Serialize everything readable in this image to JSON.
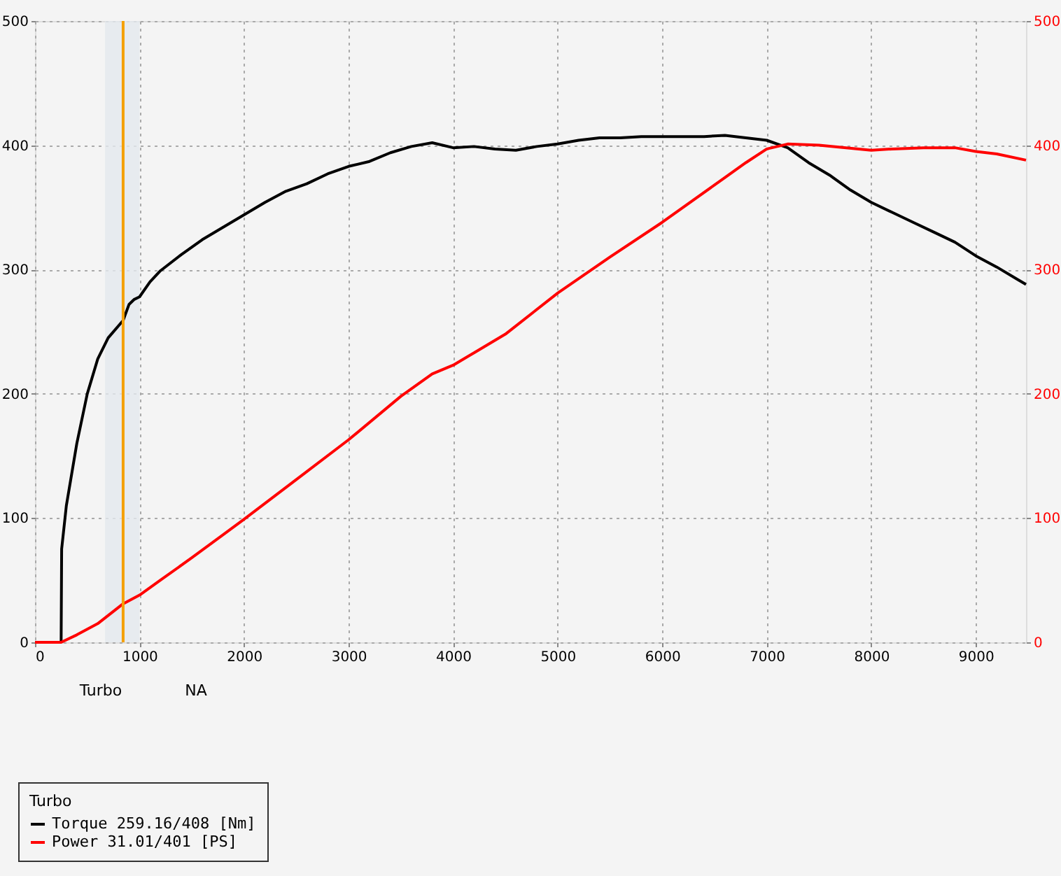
{
  "chart_data": {
    "type": "line",
    "legend_title": "Turbo",
    "legend": "bottom left",
    "grid": true,
    "marker": "none",
    "line_style": "solid",
    "xlim": [
      0,
      9480
    ],
    "xticks": [
      0,
      1000,
      2000,
      3000,
      4000,
      5000,
      6000,
      7000,
      8000,
      9000
    ],
    "ylim": [
      0,
      500
    ],
    "yticks": [
      0,
      100,
      200,
      300,
      400,
      500
    ],
    "y2lim": [
      0,
      500
    ],
    "y2ticks": [
      0,
      100,
      200,
      300,
      400,
      500
    ],
    "series": [
      {
        "name": "Torque 259.16/408 [Nm]",
        "color": "#000000",
        "x": [
          250,
          255,
          300,
          400,
          500,
          600,
          700,
          843,
          900,
          950,
          1000,
          1100,
          1200,
          1400,
          1600,
          1800,
          2000,
          2200,
          2400,
          2600,
          2800,
          3000,
          3200,
          3400,
          3600,
          3800,
          4000,
          4200,
          4400,
          4600,
          4800,
          5000,
          5200,
          5400,
          5600,
          5800,
          6000,
          6200,
          6400,
          6600,
          6800,
          7000,
          7200,
          7400,
          7600,
          7800,
          8000,
          8200,
          8400,
          8600,
          8800,
          9000,
          9200,
          9400,
          9480
        ],
        "values": [
          0,
          75,
          110,
          160,
          200,
          228,
          245,
          259,
          272,
          276,
          278,
          290,
          299,
          312,
          324,
          334,
          344,
          354,
          363,
          369,
          377,
          383,
          387,
          394,
          399,
          402,
          398,
          399,
          397,
          396,
          399,
          401,
          404,
          406,
          406,
          407,
          407,
          407,
          407,
          408,
          406,
          404,
          398,
          386,
          376,
          364,
          354,
          346,
          338,
          330,
          322,
          311,
          302,
          292,
          288
        ]
      },
      {
        "name": "Power 31.01/401 [PS]",
        "color": "#ff0000",
        "axis": "y2",
        "x": [
          0,
          250,
          400,
          600,
          843,
          1000,
          1200,
          1500,
          2000,
          2500,
          3000,
          3500,
          3800,
          4000,
          4200,
          4500,
          5000,
          5500,
          6000,
          6500,
          6800,
          7000,
          7200,
          7500,
          8000,
          8200,
          8500,
          8800,
          9000,
          9200,
          9480
        ],
        "values": [
          0,
          0,
          6,
          15,
          31,
          38,
          50,
          68,
          99,
          131,
          163,
          198,
          216,
          223,
          233,
          248,
          281,
          310,
          338,
          368,
          386,
          397,
          401,
          400,
          396,
          397,
          398,
          398,
          395,
          393,
          388
        ]
      }
    ],
    "ref_lines": [
      {
        "axis": "x",
        "value": 843,
        "color": "#f5a000",
        "line_style": "solid"
      }
    ],
    "bands": [
      {
        "axis": "x",
        "from": 670,
        "to": 1000,
        "color": "#e3e8ee"
      }
    ],
    "annotations": [
      "Turbo",
      "NA"
    ]
  }
}
